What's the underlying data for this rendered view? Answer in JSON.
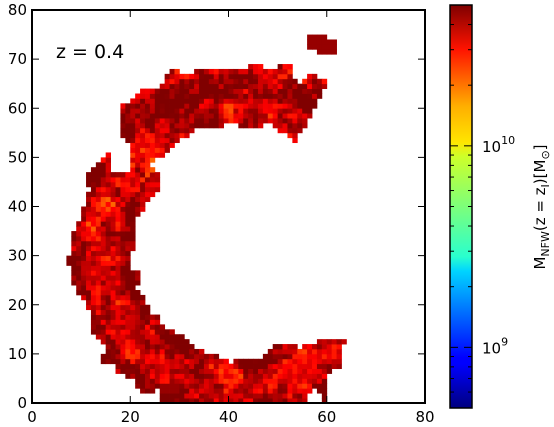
{
  "chart_data": {
    "type": "heatmap",
    "annotation": "z = 0.4",
    "xlim": [
      0,
      80
    ],
    "ylim": [
      0,
      80
    ],
    "x_ticks": [
      "0",
      "20",
      "40",
      "60",
      "80"
    ],
    "y_ticks": [
      "0",
      "10",
      "20",
      "30",
      "40",
      "50",
      "60",
      "70",
      "80"
    ],
    "grid": false,
    "colormap": "jet",
    "colorbar": {
      "label": "M_NFW(z = z_I)[M_⊙]",
      "scale": "log",
      "range": [
        500000000.0,
        50000000000.0
      ],
      "major_ticks": [
        {
          "value": 1000000000.0,
          "label": "10^9"
        },
        {
          "value": 10000000000.0,
          "label": "10^10"
        }
      ],
      "minor_ticks": [
        600000000.0,
        700000000.0,
        800000000.0,
        900000000.0,
        2000000000.0,
        3000000000.0,
        4000000000.0,
        5000000000.0,
        6000000000.0,
        7000000000.0,
        8000000000.0,
        9000000000.0,
        20000000000.0,
        30000000000.0,
        40000000000.0
      ]
    },
    "regions": [
      {
        "description": "main arc (C shape)",
        "center": [
          42,
          31
        ],
        "inner_radius": 21.5,
        "outer_radius": 34,
        "angle_range_deg": [
          -40,
          136
        ],
        "dominant_values_Msun": [
          25000000000.0,
          50000000000.0
        ]
      },
      {
        "description": "upper-right arc segment",
        "x_range": [
          50,
          60
        ],
        "y_range": [
          55,
          70
        ],
        "value_range_Msun": [
          20000000000.0,
          50000000000.0
        ]
      },
      {
        "description": "top-right clump",
        "x": [
          56,
          62
        ],
        "y": [
          71,
          75
        ],
        "value_Msun": 45000000000.0
      },
      {
        "description": "bottom clump",
        "x": [
          26,
          30
        ],
        "y": [
          2,
          4
        ],
        "value_Msun": 45000000000.0
      }
    ]
  }
}
